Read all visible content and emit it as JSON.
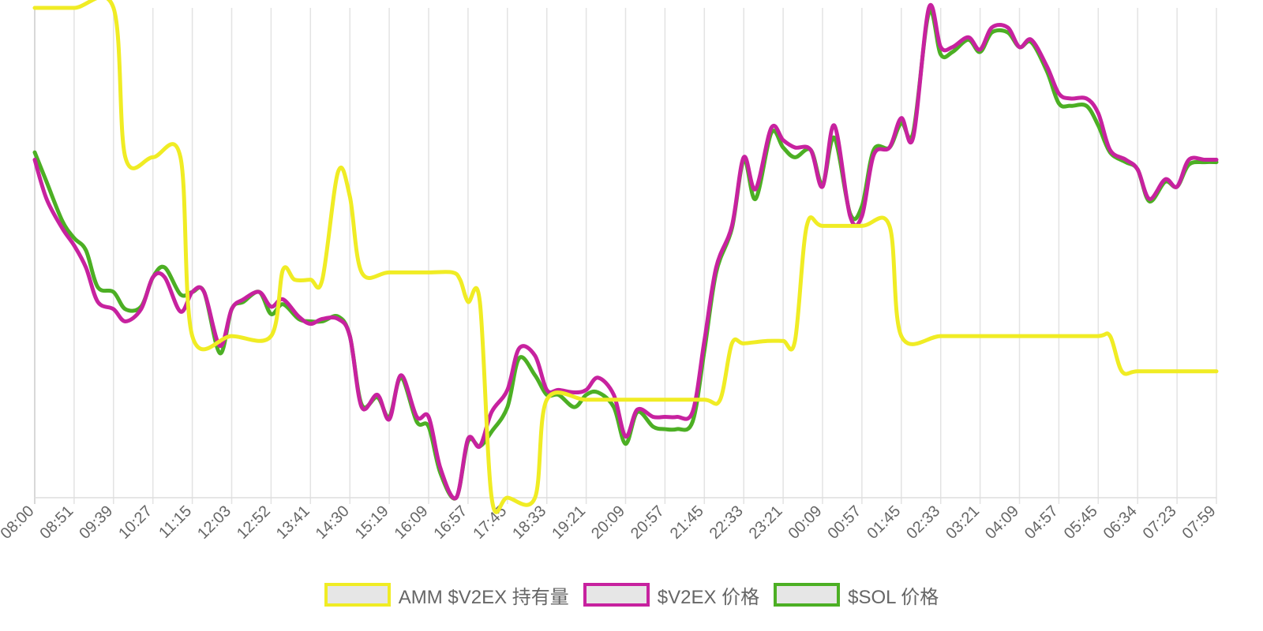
{
  "chart_data": {
    "type": "line",
    "title": "",
    "xlabel": "",
    "ylabel": "",
    "grid": true,
    "legend_position": "bottom",
    "y_axis_labels_shown": false,
    "x_tick_labels": [
      "08:00",
      "08:51",
      "09:39",
      "10:27",
      "11:15",
      "12:03",
      "12:52",
      "13:41",
      "14:30",
      "15:19",
      "16:09",
      "16:57",
      "17:45",
      "18:33",
      "19:21",
      "20:09",
      "20:57",
      "21:45",
      "22:33",
      "23:21",
      "00:09",
      "00:57",
      "01:45",
      "02:33",
      "03:21",
      "04:09",
      "04:57",
      "05:45",
      "06:34",
      "07:23",
      "07:59"
    ],
    "y_scale_note": "values are relative levels on a common 0-100 scale (no y-axis printed)",
    "series": [
      {
        "name": "AMM $V2EX 持有量",
        "color": "#f0ec24",
        "points": [
          [
            0,
            100
          ],
          [
            1,
            100
          ],
          [
            2,
            100
          ],
          [
            2.3,
            69.5
          ],
          [
            3,
            69.5
          ],
          [
            3.7,
            69.5
          ],
          [
            4,
            33
          ],
          [
            5,
            33
          ],
          [
            6,
            33
          ],
          [
            6.3,
            46.5
          ],
          [
            6.6,
            44.5
          ],
          [
            7,
            44.5
          ],
          [
            7.3,
            44.5
          ],
          [
            7.7,
            66.5
          ],
          [
            8,
            61.5
          ],
          [
            8.3,
            46
          ],
          [
            9,
            46
          ],
          [
            10,
            46
          ],
          [
            10.6,
            46
          ],
          [
            10.8,
            44.5
          ],
          [
            11,
            40
          ],
          [
            11.3,
            40
          ],
          [
            11.6,
            0
          ],
          [
            12,
            0
          ],
          [
            12.7,
            0
          ],
          [
            13,
            20
          ],
          [
            14,
            20
          ],
          [
            15,
            20
          ],
          [
            16,
            20
          ],
          [
            17,
            20
          ],
          [
            17.4,
            20
          ],
          [
            17.7,
            31.5
          ],
          [
            18,
            31.5
          ],
          [
            18.6,
            32
          ],
          [
            19,
            32
          ],
          [
            19.3,
            32
          ],
          [
            19.6,
            55.5
          ],
          [
            20,
            55.5
          ],
          [
            21,
            55.5
          ],
          [
            21.7,
            55.5
          ],
          [
            22,
            33
          ],
          [
            23,
            33
          ],
          [
            24,
            33
          ],
          [
            25,
            33
          ],
          [
            26,
            33
          ],
          [
            27,
            33
          ],
          [
            27.3,
            33
          ],
          [
            27.6,
            25.8
          ],
          [
            28,
            25.8
          ],
          [
            29,
            25.8
          ],
          [
            30,
            25.8
          ]
        ]
      },
      {
        "name": "$V2EX 价格",
        "color": "#c7229f",
        "points": [
          [
            0,
            69
          ],
          [
            0.3,
            61
          ],
          [
            0.7,
            55
          ],
          [
            1,
            51.5
          ],
          [
            1.3,
            47
          ],
          [
            1.6,
            40
          ],
          [
            2,
            38.5
          ],
          [
            2.3,
            36
          ],
          [
            2.7,
            38.5
          ],
          [
            3,
            45
          ],
          [
            3.3,
            45
          ],
          [
            3.7,
            38
          ],
          [
            4,
            42
          ],
          [
            4.3,
            42
          ],
          [
            4.7,
            31
          ],
          [
            5,
            38.5
          ],
          [
            5.3,
            40.5
          ],
          [
            5.7,
            42
          ],
          [
            6,
            39
          ],
          [
            6.3,
            40.5
          ],
          [
            6.7,
            37
          ],
          [
            7,
            35.5
          ],
          [
            7.3,
            36.5
          ],
          [
            7.7,
            36.5
          ],
          [
            8,
            33
          ],
          [
            8.3,
            18.5
          ],
          [
            8.7,
            21
          ],
          [
            9,
            16
          ],
          [
            9.3,
            25
          ],
          [
            9.7,
            16.5
          ],
          [
            10,
            16.5
          ],
          [
            10.3,
            6
          ],
          [
            10.7,
            0
          ],
          [
            11,
            12
          ],
          [
            11.3,
            10.5
          ],
          [
            11.6,
            17.5
          ],
          [
            12,
            22
          ],
          [
            12.3,
            30.5
          ],
          [
            12.7,
            29
          ],
          [
            13,
            22
          ],
          [
            13.3,
            22
          ],
          [
            13.7,
            21.5
          ],
          [
            14,
            22
          ],
          [
            14.3,
            24.5
          ],
          [
            14.7,
            21
          ],
          [
            15,
            12.5
          ],
          [
            15.3,
            18
          ],
          [
            15.7,
            16.5
          ],
          [
            16,
            16.5
          ],
          [
            16.3,
            16.5
          ],
          [
            16.7,
            17.5
          ],
          [
            17,
            32
          ],
          [
            17.3,
            47
          ],
          [
            17.7,
            55.5
          ],
          [
            18,
            69.5
          ],
          [
            18.3,
            63
          ],
          [
            18.7,
            75.5
          ],
          [
            19,
            73
          ],
          [
            19.3,
            71.5
          ],
          [
            19.7,
            71
          ],
          [
            20,
            63.5
          ],
          [
            20.3,
            76
          ],
          [
            20.7,
            57.5
          ],
          [
            21,
            57.5
          ],
          [
            21.3,
            70
          ],
          [
            21.7,
            71.5
          ],
          [
            22,
            77.5
          ],
          [
            22.3,
            73.5
          ],
          [
            22.7,
            100
          ],
          [
            23,
            92
          ],
          [
            23.3,
            92
          ],
          [
            23.7,
            94
          ],
          [
            24,
            91.5
          ],
          [
            24.3,
            96
          ],
          [
            24.7,
            96
          ],
          [
            25,
            92
          ],
          [
            25.3,
            93.5
          ],
          [
            25.7,
            88
          ],
          [
            26,
            82.5
          ],
          [
            26.3,
            81.5
          ],
          [
            26.7,
            81.5
          ],
          [
            27,
            78.5
          ],
          [
            27.3,
            71
          ],
          [
            27.7,
            69
          ],
          [
            28,
            67
          ],
          [
            28.3,
            61
          ],
          [
            28.7,
            65
          ],
          [
            29,
            63.5
          ],
          [
            29.3,
            69
          ],
          [
            29.7,
            69
          ],
          [
            30,
            69
          ]
        ]
      },
      {
        "name": "$SOL 价格",
        "color": "#4caf24",
        "points": [
          [
            0,
            70.5
          ],
          [
            0.3,
            64.5
          ],
          [
            0.7,
            56.5
          ],
          [
            1,
            53
          ],
          [
            1.3,
            50.5
          ],
          [
            1.6,
            43
          ],
          [
            2,
            42
          ],
          [
            2.3,
            38.5
          ],
          [
            2.7,
            39
          ],
          [
            3,
            45
          ],
          [
            3.3,
            47
          ],
          [
            3.7,
            41.5
          ],
          [
            4,
            42
          ],
          [
            4.3,
            42
          ],
          [
            4.7,
            29.5
          ],
          [
            5,
            38.5
          ],
          [
            5.3,
            40
          ],
          [
            5.7,
            42
          ],
          [
            6,
            37.5
          ],
          [
            6.3,
            39.5
          ],
          [
            6.7,
            36.5
          ],
          [
            7,
            36
          ],
          [
            7.3,
            36
          ],
          [
            7.7,
            37
          ],
          [
            8,
            33
          ],
          [
            8.3,
            19
          ],
          [
            8.7,
            20.5
          ],
          [
            9,
            16.5
          ],
          [
            9.3,
            24.5
          ],
          [
            9.7,
            15.5
          ],
          [
            10,
            14.5
          ],
          [
            10.3,
            5
          ],
          [
            10.7,
            0
          ],
          [
            11,
            11.5
          ],
          [
            11.3,
            10.5
          ],
          [
            11.6,
            13.5
          ],
          [
            12,
            18.5
          ],
          [
            12.3,
            28.5
          ],
          [
            12.7,
            25
          ],
          [
            13,
            21
          ],
          [
            13.3,
            21
          ],
          [
            13.7,
            18.5
          ],
          [
            14,
            21
          ],
          [
            14.3,
            21.5
          ],
          [
            14.7,
            18.5
          ],
          [
            15,
            11
          ],
          [
            15.3,
            17.5
          ],
          [
            15.7,
            14.5
          ],
          [
            16,
            14
          ],
          [
            16.3,
            14
          ],
          [
            16.7,
            15.5
          ],
          [
            17,
            30
          ],
          [
            17.3,
            46
          ],
          [
            17.7,
            55
          ],
          [
            18,
            69
          ],
          [
            18.3,
            61
          ],
          [
            18.7,
            74.5
          ],
          [
            19,
            71.5
          ],
          [
            19.3,
            69.5
          ],
          [
            19.7,
            71
          ],
          [
            20,
            64
          ],
          [
            20.3,
            73.5
          ],
          [
            20.7,
            58
          ],
          [
            21,
            59.5
          ],
          [
            21.3,
            71
          ],
          [
            21.7,
            71.5
          ],
          [
            22,
            76.5
          ],
          [
            22.3,
            74.5
          ],
          [
            22.7,
            99
          ],
          [
            23,
            90.5
          ],
          [
            23.3,
            91
          ],
          [
            23.7,
            93.5
          ],
          [
            24,
            91
          ],
          [
            24.3,
            95
          ],
          [
            24.7,
            95
          ],
          [
            25,
            92
          ],
          [
            25.3,
            93
          ],
          [
            25.7,
            87
          ],
          [
            26,
            80.5
          ],
          [
            26.3,
            80
          ],
          [
            26.7,
            80
          ],
          [
            27,
            76
          ],
          [
            27.3,
            70.5
          ],
          [
            27.7,
            68.5
          ],
          [
            28,
            67
          ],
          [
            28.3,
            60.5
          ],
          [
            28.7,
            64.5
          ],
          [
            29,
            63.5
          ],
          [
            29.3,
            68
          ],
          [
            29.7,
            68.5
          ],
          [
            30,
            68.5
          ]
        ]
      }
    ]
  }
}
